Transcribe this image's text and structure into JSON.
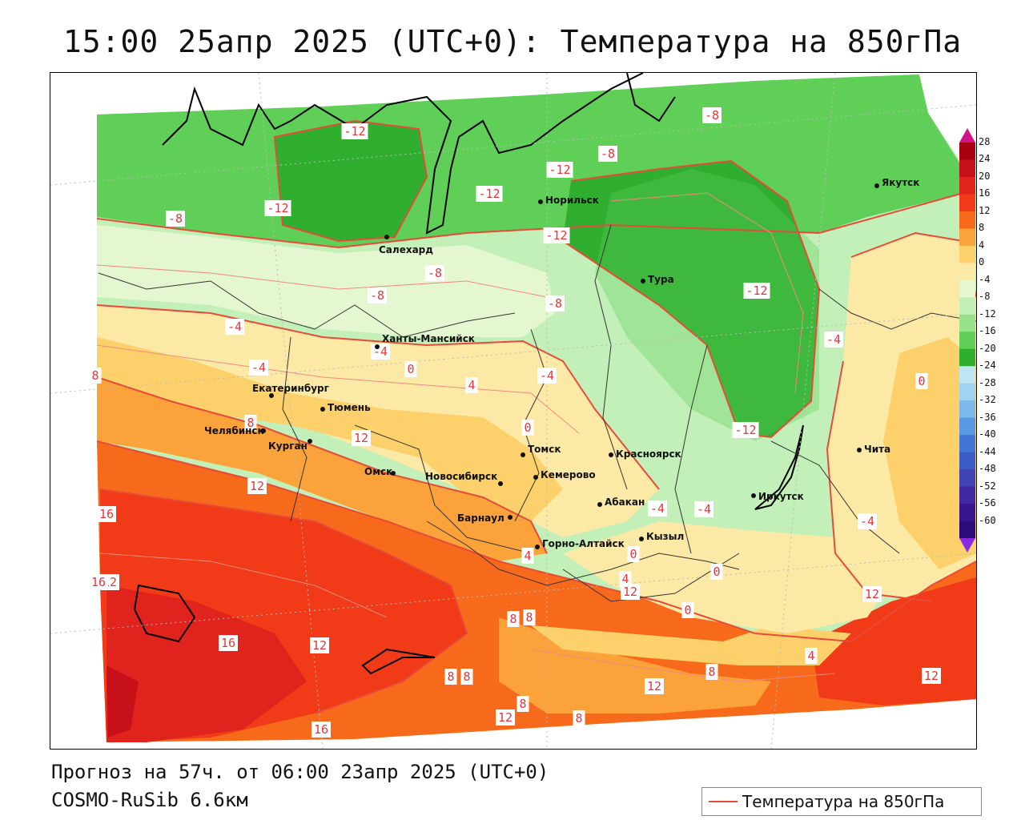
{
  "title": "15:00 25апр 2025 (UTC+0): Температура на 850гПа",
  "footer": {
    "forecast": "Прогноз на 57ч. от 06:00 23апр 2025 (UTC+0)",
    "model": "COSMO-RuSib 6.6км"
  },
  "legend": {
    "label": "Температура на 850гПа",
    "line_color": "#e84a3a"
  },
  "colorbar": {
    "ticks": [
      "28",
      "24",
      "20",
      "16",
      "12",
      "8",
      "4",
      "0",
      "-4",
      "-8",
      "-12",
      "-16",
      "-20",
      "-24",
      "-28",
      "-32",
      "-36",
      "-40",
      "-44",
      "-48",
      "-52",
      "-56",
      "-60"
    ],
    "colors": [
      "#a8000f",
      "#c8101a",
      "#e0231c",
      "#f03a18",
      "#f76a1c",
      "#fba23a",
      "#fcd06a",
      "#fde9a6",
      "#e5f7d0",
      "#c3f0b8",
      "#98e28a",
      "#5fcf58",
      "#2fae2f",
      "#bfe6f5",
      "#9fd4f0",
      "#7ab9ea",
      "#5a98e2",
      "#4176d6",
      "#3a5bc8",
      "#3f43b5",
      "#4227a2",
      "#3a1590",
      "#2b0a7a"
    ]
  },
  "cities": [
    {
      "name": "Якутск"
    },
    {
      "name": "Норильск"
    },
    {
      "name": "Салехард"
    },
    {
      "name": "Тура"
    },
    {
      "name": "Ханты-Мансийск"
    },
    {
      "name": "Екатеринбург"
    },
    {
      "name": "Тюмень"
    },
    {
      "name": "Челябинск"
    },
    {
      "name": "Курган"
    },
    {
      "name": "Омск"
    },
    {
      "name": "Новосибирск"
    },
    {
      "name": "Томск"
    },
    {
      "name": "Кемерово"
    },
    {
      "name": "Красноярск"
    },
    {
      "name": "Барнаул"
    },
    {
      "name": "Абакан"
    },
    {
      "name": "Иркутск"
    },
    {
      "name": "Чита"
    },
    {
      "name": "Кызыл"
    },
    {
      "name": "Горно-Алтайск"
    }
  ],
  "contour_labels": [
    "-12",
    "-8",
    "-12",
    "-8",
    "-8",
    "-12",
    "-12",
    "-12",
    "-8",
    "-12",
    "-8",
    "-4",
    "-8",
    "-4",
    "-4",
    "0",
    "-4",
    "4",
    "0",
    "-4",
    "8",
    "0",
    "8",
    "12",
    "-12",
    "12",
    "4",
    "8",
    "12",
    "-4",
    "-4",
    "0",
    "4",
    "0",
    "-4",
    "0",
    "8",
    "16",
    "12",
    "4",
    "12",
    "16",
    "16",
    "12",
    "12",
    "8",
    "8",
    "12",
    "8",
    "12",
    "16",
    "8",
    "8"
  ]
}
